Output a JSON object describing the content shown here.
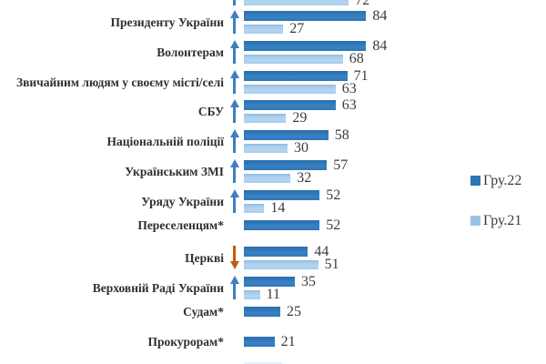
{
  "chart_data": {
    "type": "bar",
    "orientation": "horizontal",
    "title": "",
    "xlabel": "",
    "ylabel": "",
    "xlim": [
      0,
      100
    ],
    "grid": false,
    "legend_position": "right-middle",
    "series_names": [
      "Гру.22",
      "Гру.21"
    ],
    "legend": [
      {
        "label": "Гру.22",
        "color": "#2E75B6"
      },
      {
        "label": "Гру.21",
        "color": "#9CC3E6"
      }
    ],
    "categories": [
      {
        "label": "",
        "dec22": null,
        "dec21": 72,
        "arrow": "up",
        "note": "top category cut off by screenshot edge, only Гру.21 bar and value visible"
      },
      {
        "label": "Президенту України",
        "dec22": 84,
        "dec21": 27,
        "arrow": "up"
      },
      {
        "label": "Волонтерам",
        "dec22": 84,
        "dec21": 68,
        "arrow": "up"
      },
      {
        "label": "Звичайним людям у своєму місті/селі",
        "dec22": 71,
        "dec21": 63,
        "arrow": "up"
      },
      {
        "label": "СБУ",
        "dec22": 63,
        "dec21": 29,
        "arrow": "up"
      },
      {
        "label": "Національній поліції",
        "dec22": 58,
        "dec21": 30,
        "arrow": "up"
      },
      {
        "label": "Українським ЗМІ",
        "dec22": 57,
        "dec21": 32,
        "arrow": "up"
      },
      {
        "label": "Уряду України",
        "dec22": 52,
        "dec21": 14,
        "arrow": "up"
      },
      {
        "label": "Переселенцям*",
        "dec22": 52,
        "dec21": null,
        "arrow": null
      },
      {
        "label": "Церкві",
        "dec22": 44,
        "dec21": 51,
        "arrow": "down"
      },
      {
        "label": "Верховній Раді України",
        "dec22": 35,
        "dec21": 11,
        "arrow": "up"
      },
      {
        "label": "Судам*",
        "dec22": 25,
        "dec21": null,
        "arrow": null
      },
      {
        "label": "Прокурорам*",
        "dec22": 21,
        "dec21": null,
        "arrow": null
      }
    ],
    "colors": {
      "bar_dec22": "#2E75B6",
      "bar_dec21": "#A5CBEB",
      "arrow_up": "#3E7EC1",
      "arrow_down": "#C55A11",
      "value_text": "#3B3B3B",
      "label_text": "#2F2F2F"
    }
  }
}
